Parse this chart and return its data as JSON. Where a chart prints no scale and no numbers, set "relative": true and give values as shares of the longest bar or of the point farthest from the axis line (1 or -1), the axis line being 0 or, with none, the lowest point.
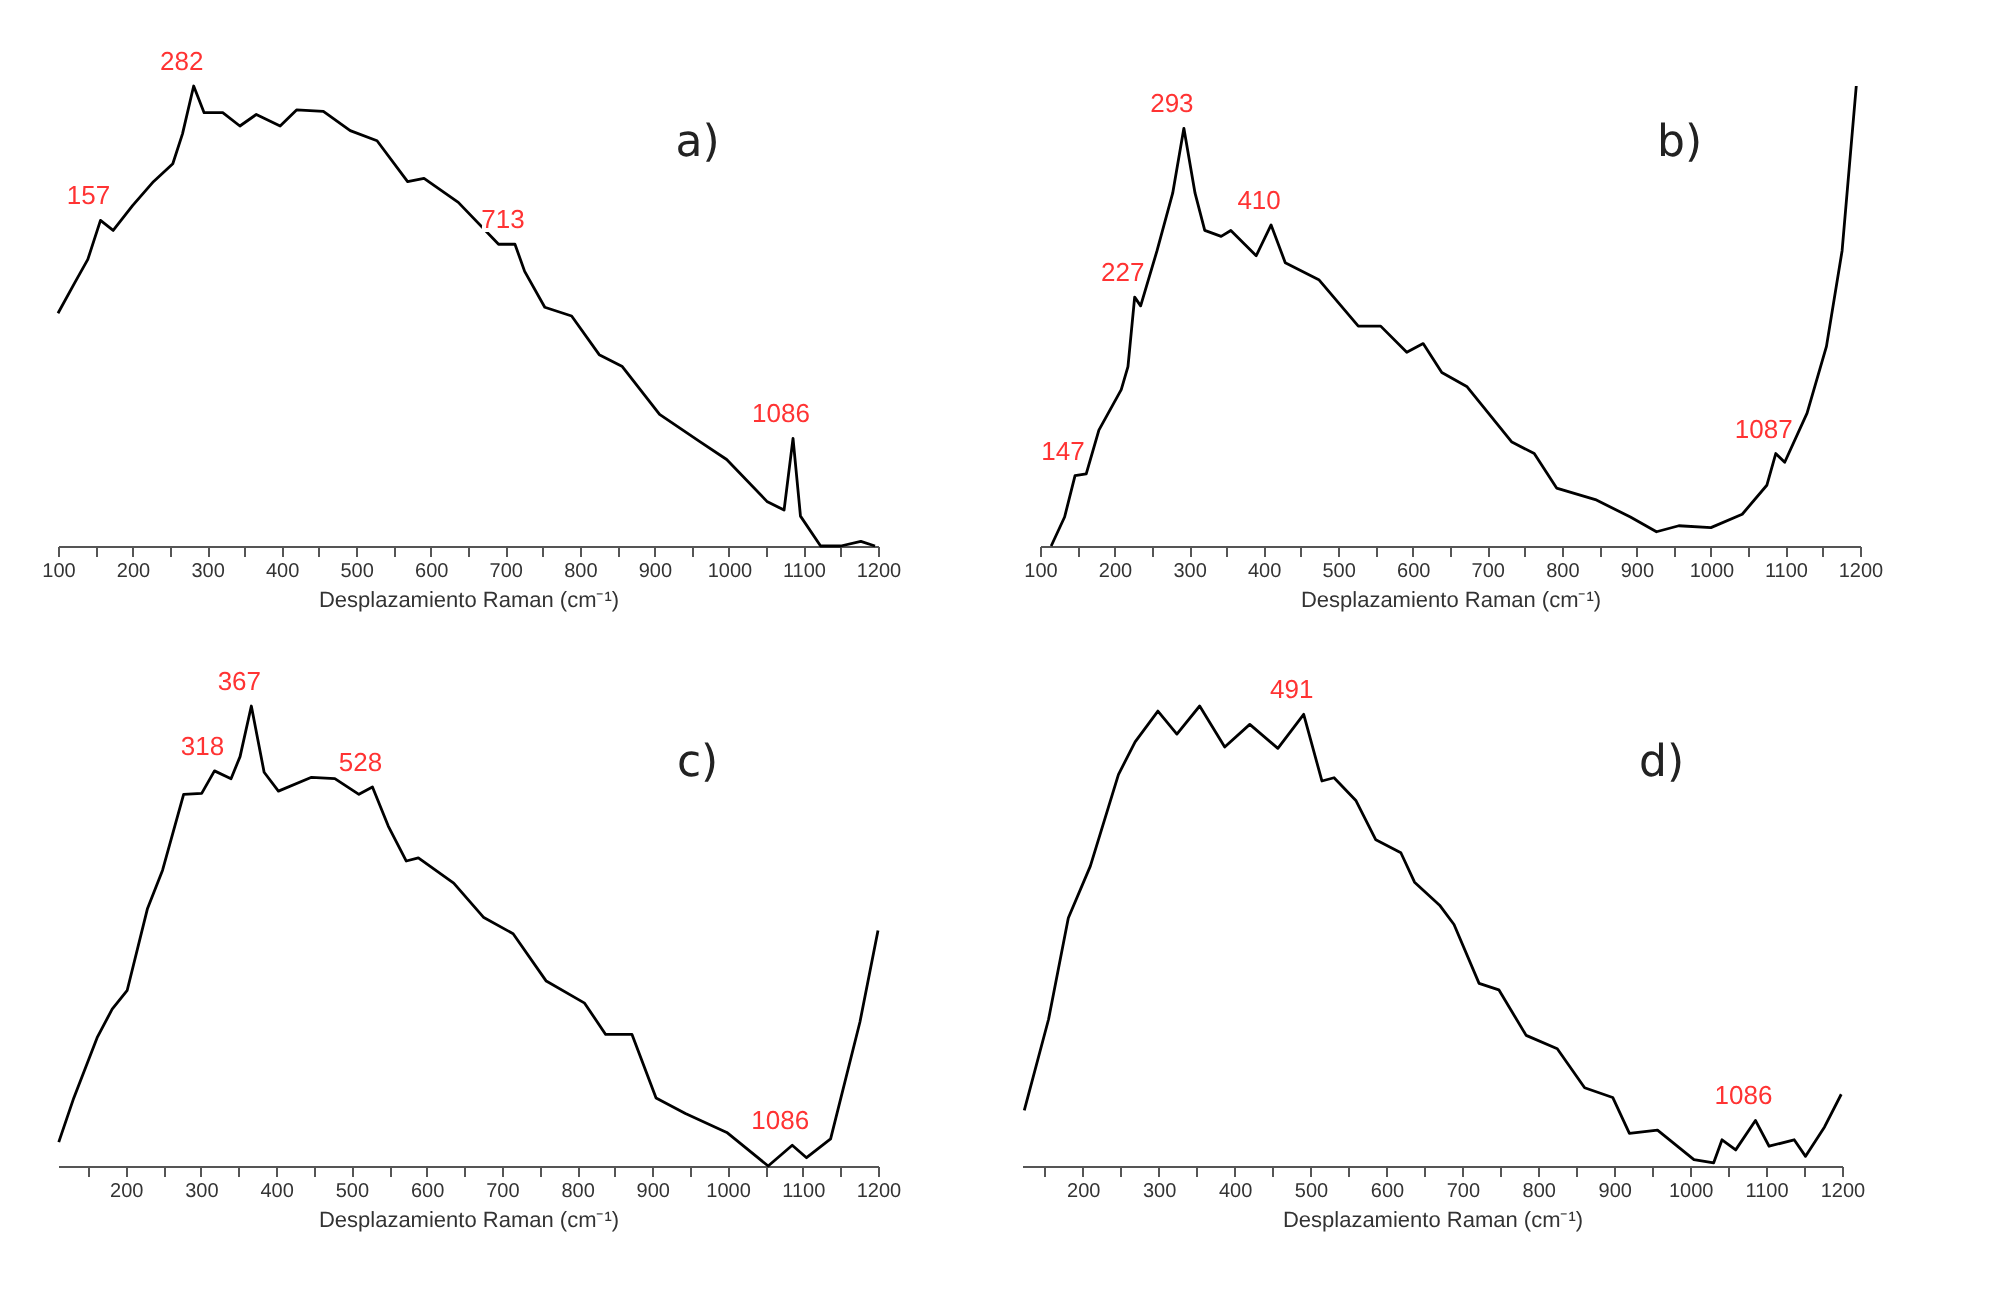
{
  "chart_data": [
    {
      "type": "line",
      "title": "a)",
      "xlabel": "Desplazamiento Raman (cm⁻¹)",
      "relative": true,
      "xlim": [
        100,
        1200
      ],
      "xticks": [
        100,
        {
          "value": 150,
          "label": null
        },
        200,
        {
          "value": 250,
          "label": null
        },
        300,
        {
          "value": 350,
          "label": null
        },
        400,
        {
          "value": 450,
          "label": null
        },
        500,
        {
          "value": 550,
          "label": null
        },
        600,
        {
          "value": 650,
          "label": null
        },
        700,
        {
          "value": 750,
          "label": null
        },
        800,
        {
          "value": 850,
          "label": null
        },
        900,
        {
          "value": 950,
          "label": null
        },
        1000,
        {
          "value": 1050,
          "label": null
        },
        1100,
        {
          "value": 1150,
          "label": null
        },
        1200
      ],
      "series": [
        {
          "color": "#000000",
          "x": [
            100,
            122,
            140,
            157,
            174,
            200,
            228,
            254,
            267,
            282,
            296,
            321,
            344,
            366,
            398,
            420,
            456,
            492,
            528,
            569,
            591,
            637,
            691,
            713,
            726,
            753,
            789,
            826,
            857,
            907,
            961,
            997,
            1051,
            1074,
            1086,
            1096,
            1123,
            1150,
            1177,
            1196
          ],
          "values": [
            0.506,
            0.571,
            0.623,
            0.708,
            0.686,
            0.74,
            0.792,
            0.831,
            0.896,
            1.0,
            0.942,
            0.942,
            0.913,
            0.938,
            0.913,
            0.948,
            0.945,
            0.903,
            0.881,
            0.792,
            0.799,
            0.747,
            0.656,
            0.656,
            0.597,
            0.519,
            0.5,
            0.416,
            0.39,
            0.286,
            0.227,
            0.188,
            0.097,
            0.078,
            0.234,
            0.065,
            0,
            0,
            0.01,
            0
          ]
        }
      ],
      "annotations": [
        {
          "text": "157",
          "x": 157,
          "y": 0.708
        },
        {
          "text": "282",
          "x": 282,
          "y": 1.0
        },
        {
          "text": "713",
          "x": 713,
          "y": 0.656
        },
        {
          "text": "1086",
          "x": 1086,
          "y": 0.234
        }
      ]
    },
    {
      "type": "line",
      "title": "b)",
      "xlabel": "Desplazamiento Raman (cm⁻¹)",
      "relative": true,
      "xlim": [
        100,
        1200
      ],
      "xticks": [
        100,
        {
          "value": 150,
          "label": null
        },
        200,
        {
          "value": 250,
          "label": null
        },
        300,
        {
          "value": 350,
          "label": null
        },
        400,
        {
          "value": 450,
          "label": null
        },
        500,
        {
          "value": 550,
          "label": null
        },
        600,
        {
          "value": 650,
          "label": null
        },
        700,
        {
          "value": 750,
          "label": null
        },
        800,
        {
          "value": 850,
          "label": null
        },
        900,
        {
          "value": 950,
          "label": null
        },
        1000,
        {
          "value": 1050,
          "label": null
        },
        1100,
        {
          "value": 1150,
          "label": null
        },
        1200
      ],
      "series": [
        {
          "color": "#000000",
          "x": [
            115,
            133,
            147,
            162,
            179,
            209,
            218,
            227,
            235,
            257,
            278,
            293,
            308,
            321,
            343,
            356,
            390,
            410,
            429,
            474,
            527,
            557,
            592,
            614,
            639,
            673,
            733,
            763,
            793,
            845,
            892,
            927,
            957,
            1000,
            1042,
            1075,
            1087,
            1099,
            1129,
            1155,
            1176,
            1195
          ],
          "values": [
            0,
            0.063,
            0.153,
            0.157,
            0.252,
            0.34,
            0.39,
            0.541,
            0.522,
            0.642,
            0.767,
            0.908,
            0.767,
            0.686,
            0.673,
            0.686,
            0.631,
            0.698,
            0.616,
            0.579,
            0.478,
            0.478,
            0.421,
            0.44,
            0.377,
            0.346,
            0.226,
            0.201,
            0.126,
            0.101,
            0.063,
            0.031,
            0.044,
            0.04,
            0.069,
            0.132,
            0.201,
            0.182,
            0.289,
            0.434,
            0.642,
            1.0
          ]
        }
      ],
      "annotations": [
        {
          "text": "147",
          "x": 147,
          "y": 0.153
        },
        {
          "text": "227",
          "x": 227,
          "y": 0.541
        },
        {
          "text": "293",
          "x": 293,
          "y": 0.908
        },
        {
          "text": "410",
          "x": 410,
          "y": 0.698
        },
        {
          "text": "1087",
          "x": 1087,
          "y": 0.201
        }
      ]
    },
    {
      "type": "line",
      "title": "c)",
      "xlabel": "Desplazamiento Raman (cm⁻¹)",
      "relative": true,
      "xlim": [
        110,
        1200
      ],
      "xticks": [
        {
          "value": 150,
          "label": null
        },
        200,
        {
          "value": 250,
          "label": null
        },
        300,
        {
          "value": 350,
          "label": null
        },
        400,
        {
          "value": 450,
          "label": null
        },
        500,
        {
          "value": 550,
          "label": null
        },
        600,
        {
          "value": 650,
          "label": null
        },
        700,
        {
          "value": 750,
          "label": null
        },
        800,
        {
          "value": 850,
          "label": null
        },
        900,
        {
          "value": 950,
          "label": null
        },
        1000,
        {
          "value": 1050,
          "label": null
        },
        1100,
        {
          "value": 1150,
          "label": null
        },
        1200
      ],
      "series": [
        {
          "color": "#000000",
          "x": [
            111,
            131,
            162,
            182,
            202,
            229,
            249,
            277,
            301,
            318,
            340,
            352,
            367,
            384,
            403,
            447,
            478,
            510,
            528,
            549,
            573,
            589,
            636,
            676,
            715,
            759,
            810,
            838,
            873,
            905,
            944,
            999,
            1054,
            1086,
            1105,
            1137,
            1176,
            1200
          ],
          "values": [
            0.052,
            0.148,
            0.279,
            0.341,
            0.382,
            0.56,
            0.643,
            0.808,
            0.81,
            0.859,
            0.842,
            0.89,
            1.0,
            0.856,
            0.815,
            0.845,
            0.842,
            0.808,
            0.824,
            0.739,
            0.663,
            0.67,
            0.615,
            0.54,
            0.505,
            0.402,
            0.354,
            0.286,
            0.286,
            0.148,
            0.114,
            0.073,
            0,
            0.045,
            0.018,
            0.059,
            0.313,
            0.512
          ]
        }
      ],
      "annotations": [
        {
          "text": "318",
          "x": 318,
          "y": 0.859
        },
        {
          "text": "367",
          "x": 367,
          "y": 1.0
        },
        {
          "text": "528",
          "x": 528,
          "y": 0.824
        },
        {
          "text": "1086",
          "x": 1086,
          "y": 0.045
        }
      ]
    },
    {
      "type": "line",
      "title": "d)",
      "xlabel": "Desplazamiento Raman (cm⁻¹)",
      "relative": true,
      "xlim": [
        120,
        1200
      ],
      "xticks": [
        {
          "value": 150,
          "label": null
        },
        200,
        {
          "value": 250,
          "label": null
        },
        300,
        {
          "value": 350,
          "label": null
        },
        400,
        {
          "value": 450,
          "label": null
        },
        500,
        {
          "value": 550,
          "label": null
        },
        600,
        {
          "value": 650,
          "label": null
        },
        700,
        {
          "value": 750,
          "label": null
        },
        800,
        {
          "value": 850,
          "label": null
        },
        900,
        {
          "value": 950,
          "label": null
        },
        1000,
        {
          "value": 1050,
          "label": null
        },
        1100,
        {
          "value": 1150,
          "label": null
        },
        1200
      ],
      "series": [
        {
          "color": "#000000",
          "x": [
            123,
            155,
            181,
            210,
            247,
            269,
            299,
            324,
            354,
            387,
            420,
            457,
            491,
            515,
            531,
            560,
            586,
            619,
            637,
            670,
            689,
            722,
            748,
            784,
            825,
            861,
            898,
            920,
            957,
            1005,
            1031,
            1042,
            1060,
            1086,
            1104,
            1137,
            1152,
            1177,
            1199
          ],
          "values": [
            0.121,
            0.319,
            0.539,
            0.652,
            0.851,
            0.922,
            0.989,
            0.939,
            1.0,
            0.911,
            0.96,
            0.908,
            0.982,
            0.837,
            0.844,
            0.794,
            0.709,
            0.681,
            0.617,
            0.567,
            0.525,
            0.397,
            0.383,
            0.284,
            0.255,
            0.17,
            0.149,
            0.071,
            0.078,
            0.014,
            0.007,
            0.057,
            0.035,
            0.099,
            0.043,
            0.057,
            0.021,
            0.085,
            0.156
          ]
        }
      ],
      "annotations": [
        {
          "text": "491",
          "x": 491,
          "y": 0.982
        },
        {
          "text": "1086",
          "x": 1086,
          "y": 0.099
        }
      ]
    }
  ]
}
